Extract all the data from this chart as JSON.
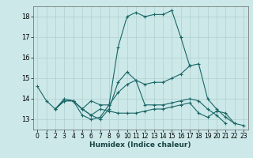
{
  "xlabel": "Humidex (Indice chaleur)",
  "bg_color": "#cce8e8",
  "grid_color": "#b0d0d0",
  "line_color": "#1a6666",
  "xlim": [
    -0.5,
    23.5
  ],
  "ylim": [
    12.5,
    18.5
  ],
  "yticks": [
    13,
    14,
    15,
    16,
    17,
    18
  ],
  "xticks": [
    0,
    1,
    2,
    3,
    4,
    5,
    6,
    7,
    8,
    9,
    10,
    11,
    12,
    13,
    14,
    15,
    16,
    17,
    18,
    19,
    20,
    21,
    22,
    23
  ],
  "lines": [
    {
      "x": [
        0,
        1,
        2,
        3,
        4,
        5,
        6,
        7,
        8,
        9,
        10,
        11,
        12,
        13,
        14,
        15,
        16,
        17
      ],
      "y": [
        14.6,
        13.9,
        13.5,
        14.0,
        13.9,
        13.2,
        13.0,
        13.1,
        13.7,
        16.5,
        18.0,
        18.2,
        18.0,
        18.1,
        18.1,
        18.3,
        17.0,
        15.6
      ]
    },
    {
      "x": [
        2,
        3,
        4,
        5,
        6,
        7,
        8,
        9,
        10,
        11,
        12,
        13,
        14,
        15,
        16,
        17,
        18,
        19,
        20,
        21,
        22
      ],
      "y": [
        13.5,
        13.9,
        13.9,
        13.5,
        13.9,
        13.7,
        13.7,
        14.3,
        14.7,
        14.9,
        14.7,
        14.8,
        14.8,
        15.0,
        15.2,
        15.6,
        15.7,
        14.0,
        13.5,
        13.1,
        12.8
      ]
    },
    {
      "x": [
        2,
        3,
        4,
        5,
        6,
        7,
        8,
        9,
        10,
        11,
        12,
        13,
        14,
        15,
        16,
        17,
        18,
        19,
        20,
        21
      ],
      "y": [
        13.5,
        13.9,
        13.9,
        13.5,
        13.2,
        13.0,
        13.5,
        14.8,
        15.3,
        14.9,
        13.7,
        13.7,
        13.7,
        13.8,
        13.9,
        14.0,
        13.9,
        13.5,
        13.2,
        12.8
      ]
    },
    {
      "x": [
        2,
        3,
        4,
        5,
        6,
        7,
        8,
        9,
        10,
        11,
        12,
        13,
        14,
        15,
        16,
        17,
        18,
        19,
        20,
        21,
        22,
        23
      ],
      "y": [
        13.5,
        13.9,
        13.9,
        13.5,
        13.2,
        13.5,
        13.4,
        13.3,
        13.3,
        13.3,
        13.4,
        13.5,
        13.5,
        13.6,
        13.7,
        13.8,
        13.3,
        13.1,
        13.4,
        13.3,
        12.8,
        12.7
      ]
    }
  ]
}
